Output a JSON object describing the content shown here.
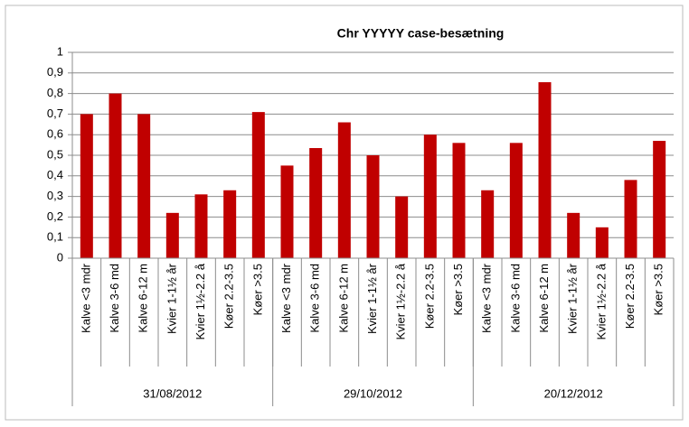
{
  "chart_data": {
    "type": "bar",
    "title": "Chr YYYYY  case-besætning",
    "color": "#c00000",
    "grid": true,
    "ylim": [
      0,
      1
    ],
    "yticks": [
      0,
      {
        "value": 0.1,
        "label": "0,1"
      },
      {
        "value": 0.2,
        "label": "0,2"
      },
      {
        "value": 0.3,
        "label": "0,3"
      },
      {
        "value": 0.4,
        "label": "0,4"
      },
      {
        "value": 0.5,
        "label": "0,5"
      },
      {
        "value": 0.6,
        "label": "0,6"
      },
      {
        "value": 0.7,
        "label": "0,7"
      },
      {
        "value": 0.8,
        "label": "0,8"
      },
      {
        "value": 0.9,
        "label": "0,9"
      },
      1
    ],
    "groups": [
      {
        "label": "31/08/2012",
        "categories": [
          "Kalve <3 mdr",
          "Kalve 3-6 md",
          "Kalve 6-12 m",
          "Kvier 1-1½ år",
          "Kvier 1½-2.2 å",
          "Køer 2.2-3.5",
          "Køer >3.5"
        ],
        "values": [
          0.7,
          0.8,
          0.7,
          0.22,
          0.31,
          0.33,
          0.71
        ]
      },
      {
        "label": "29/10/2012",
        "categories": [
          "Kalve <3 mdr",
          "Kalve 3-6 md",
          "Kalve 6-12 m",
          "Kvier 1-1½ år",
          "Kvier 1½-2.2 å",
          "Køer 2.2-3.5",
          "Køer >3.5"
        ],
        "values": [
          0.45,
          0.535,
          0.66,
          0.5,
          0.3,
          0.6,
          0.56
        ]
      },
      {
        "label": "20/12/2012",
        "categories": [
          "Kalve <3 mdr",
          "Kalve 3-6 md",
          "Kalve 6-12 m",
          "Kvier 1-1½ år",
          "Kvier 1½-2.2 å",
          "Køer 2.2-3.5",
          "Køer >3.5"
        ],
        "values": [
          0.33,
          0.56,
          0.855,
          0.22,
          0.15,
          0.38,
          0.57
        ]
      }
    ]
  }
}
